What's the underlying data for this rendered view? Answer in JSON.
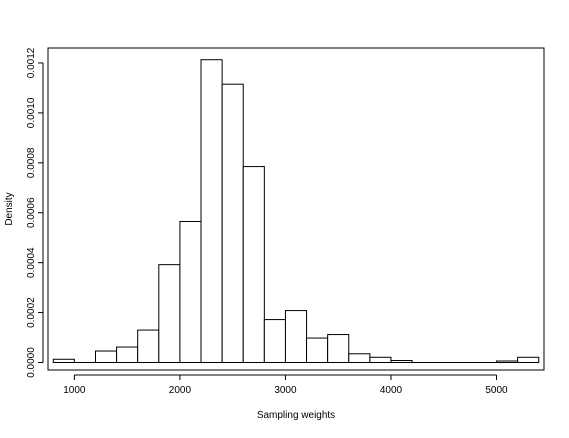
{
  "chart_data": {
    "type": "bar",
    "title": "",
    "xlabel": "Sampling weights",
    "ylabel": "Density",
    "xlim": [
      750,
      5450
    ],
    "ylim": [
      -3e-05,
      0.00126
    ],
    "grid": false,
    "bin_width": 200,
    "bins": [
      {
        "x0": 800,
        "x1": 1000,
        "density": 1.3e-05
      },
      {
        "x0": 1000,
        "x1": 1200,
        "density": 0.0
      },
      {
        "x0": 1200,
        "x1": 1400,
        "density": 4.6e-05
      },
      {
        "x0": 1400,
        "x1": 1600,
        "density": 6.2e-05
      },
      {
        "x0": 1600,
        "x1": 1800,
        "density": 0.00013
      },
      {
        "x0": 1800,
        "x1": 2000,
        "density": 0.000392
      },
      {
        "x0": 2000,
        "x1": 2200,
        "density": 0.000565
      },
      {
        "x0": 2200,
        "x1": 2400,
        "density": 0.001213
      },
      {
        "x0": 2400,
        "x1": 2600,
        "density": 0.001115
      },
      {
        "x0": 2600,
        "x1": 2800,
        "density": 0.000785
      },
      {
        "x0": 2800,
        "x1": 3000,
        "density": 0.000172
      },
      {
        "x0": 3000,
        "x1": 3200,
        "density": 0.000208
      },
      {
        "x0": 3200,
        "x1": 3400,
        "density": 9.8e-05
      },
      {
        "x0": 3400,
        "x1": 3600,
        "density": 0.000112
      },
      {
        "x0": 3600,
        "x1": 3800,
        "density": 3.5e-05
      },
      {
        "x0": 3800,
        "x1": 4000,
        "density": 2.1e-05
      },
      {
        "x0": 4000,
        "x1": 4200,
        "density": 8e-06
      },
      {
        "x0": 4200,
        "x1": 4400,
        "density": 0.0
      },
      {
        "x0": 4400,
        "x1": 4600,
        "density": 0.0
      },
      {
        "x0": 4600,
        "x1": 4800,
        "density": 0.0
      },
      {
        "x0": 4800,
        "x1": 5000,
        "density": 0.0
      },
      {
        "x0": 5000,
        "x1": 5200,
        "density": 6e-06
      },
      {
        "x0": 5200,
        "x1": 5400,
        "density": 2.1e-05
      }
    ],
    "x_ticks": [
      {
        "value": 1000,
        "label": "1000"
      },
      {
        "value": 2000,
        "label": "2000"
      },
      {
        "value": 3000,
        "label": "3000"
      },
      {
        "value": 4000,
        "label": "4000"
      },
      {
        "value": 5000,
        "label": "5000"
      }
    ],
    "y_ticks": [
      {
        "value": 0.0,
        "label": "0.0000"
      },
      {
        "value": 0.0002,
        "label": "0.0002"
      },
      {
        "value": 0.0004,
        "label": "0.0004"
      },
      {
        "value": 0.0006,
        "label": "0.0006"
      },
      {
        "value": 0.0008,
        "label": "0.0008"
      },
      {
        "value": 0.001,
        "label": "0.0010"
      },
      {
        "value": 0.0012,
        "label": "0.0012"
      }
    ]
  }
}
